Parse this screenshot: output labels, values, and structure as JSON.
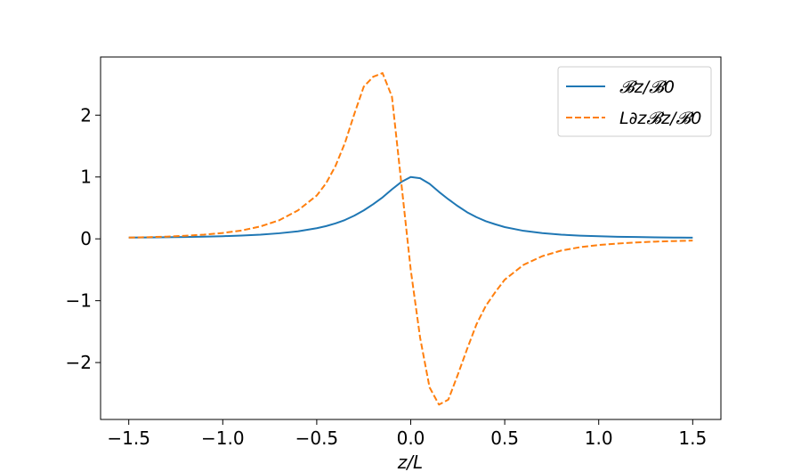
{
  "chart_data": {
    "type": "line",
    "xlabel": "z/L",
    "ylabel": "",
    "xlim": [
      -1.65,
      1.65
    ],
    "ylim": [
      -2.92,
      2.94
    ],
    "xticks": [
      -1.5,
      -1.0,
      -0.5,
      0.0,
      0.5,
      1.0,
      1.5
    ],
    "xtick_labels": [
      "−1.5",
      "−1.0",
      "−0.5",
      "0.0",
      "0.5",
      "1.0",
      "1.5"
    ],
    "yticks": [
      -2,
      -1,
      0,
      1,
      2
    ],
    "ytick_labels": [
      "−2",
      "−1",
      "0",
      "1",
      "2"
    ],
    "grid": false,
    "legend_position": "top-right",
    "series": [
      {
        "name": "𝓑z/𝓑0",
        "style": "solid",
        "color": "#1f77b4",
        "x": [
          -1.5,
          -1.4,
          -1.3,
          -1.2,
          -1.1,
          -1.0,
          -0.9,
          -0.8,
          -0.7,
          -0.6,
          -0.5,
          -0.45,
          -0.4,
          -0.35,
          -0.3,
          -0.25,
          -0.2,
          -0.15,
          -0.1,
          -0.05,
          0.0,
          0.05,
          0.1,
          0.15,
          0.2,
          0.25,
          0.3,
          0.35,
          0.4,
          0.45,
          0.5,
          0.6,
          0.7,
          0.8,
          0.9,
          1.0,
          1.1,
          1.2,
          1.3,
          1.4,
          1.5
        ],
        "values": [
          0.02,
          0.022,
          0.026,
          0.03,
          0.035,
          0.043,
          0.053,
          0.068,
          0.09,
          0.122,
          0.172,
          0.206,
          0.25,
          0.305,
          0.375,
          0.46,
          0.56,
          0.67,
          0.8,
          0.92,
          1.0,
          0.98,
          0.89,
          0.76,
          0.64,
          0.53,
          0.43,
          0.35,
          0.285,
          0.235,
          0.19,
          0.13,
          0.092,
          0.068,
          0.052,
          0.042,
          0.034,
          0.029,
          0.025,
          0.021,
          0.019
        ]
      },
      {
        "name": "L∂z𝓑z/𝓑0",
        "style": "dashed",
        "color": "#ff7f0e",
        "x": [
          -1.5,
          -1.4,
          -1.3,
          -1.2,
          -1.1,
          -1.0,
          -0.9,
          -0.8,
          -0.7,
          -0.6,
          -0.5,
          -0.45,
          -0.4,
          -0.35,
          -0.3,
          -0.25,
          -0.2,
          -0.15,
          -0.1,
          -0.05,
          0.0,
          0.05,
          0.1,
          0.15,
          0.2,
          0.25,
          0.3,
          0.35,
          0.4,
          0.45,
          0.5,
          0.6,
          0.7,
          0.8,
          0.9,
          1.0,
          1.1,
          1.2,
          1.3,
          1.4,
          1.5
        ],
        "values": [
          0.02,
          0.027,
          0.036,
          0.05,
          0.068,
          0.095,
          0.135,
          0.2,
          0.3,
          0.46,
          0.7,
          0.9,
          1.18,
          1.55,
          2.02,
          2.46,
          2.62,
          2.68,
          2.3,
          0.9,
          -0.5,
          -1.6,
          -2.4,
          -2.68,
          -2.6,
          -2.2,
          -1.78,
          -1.38,
          -1.08,
          -0.86,
          -0.66,
          -0.42,
          -0.28,
          -0.19,
          -0.135,
          -0.1,
          -0.076,
          -0.058,
          -0.045,
          -0.036,
          -0.028
        ]
      }
    ]
  }
}
